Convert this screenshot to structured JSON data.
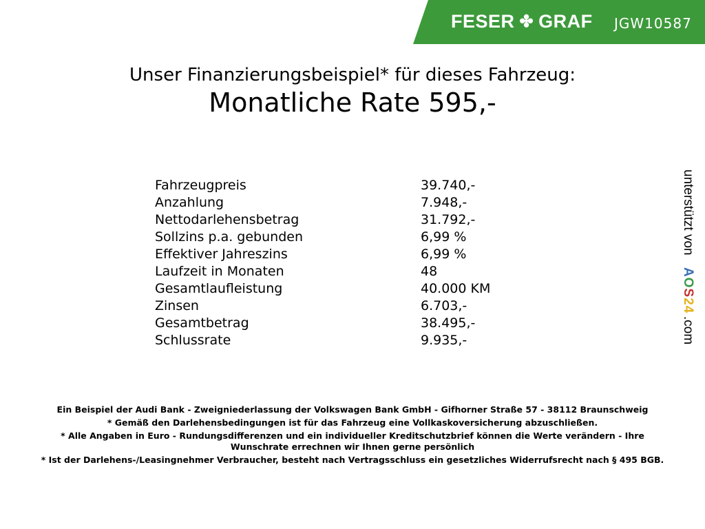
{
  "header": {
    "brand": "FESER",
    "brand2": "GRAF",
    "code": "JGW10587",
    "brand_color": "#3d9a3b",
    "logo_icon": "clover-icon"
  },
  "title": {
    "line1": "Unser Finanzierungsbeispiel* für dieses Fahrzeug:",
    "line2": "Monatliche Rate 595,-"
  },
  "rows": [
    {
      "label": "Fahrzeugpreis",
      "value": "39.740,-"
    },
    {
      "label": "Anzahlung",
      "value": "7.948,-"
    },
    {
      "label": "Nettodarlehensbetrag",
      "value": "31.792,-"
    },
    {
      "label": "Sollzins p.a. gebunden",
      "value": "6,99 %"
    },
    {
      "label": "Effektiver Jahreszins",
      "value": "6,99 %"
    },
    {
      "label": "Laufzeit in Monaten",
      "value": "48"
    },
    {
      "label": "Gesamtlaufleistung",
      "value": "40.000 KM"
    },
    {
      "label": "Zinsen",
      "value": "6.703,-"
    },
    {
      "label": "Gesamtbetrag",
      "value": "38.495,-"
    },
    {
      "label": "Schlussrate",
      "value": "9.935,-"
    }
  ],
  "side": {
    "text": "unterstützt von",
    "logo": "AOS24",
    "suffix": ".com"
  },
  "footer": [
    "Ein Beispiel der Audi Bank - Zweigniederlassung der Volkswagen Bank GmbH - Gifhorner Straße 57 - 38112 Braunschweig",
    "* Gemäß den Darlehensbedingungen ist für das Fahrzeug eine Vollkaskoversicherung abzuschließen.",
    "* Alle Angaben in Euro - Rundungsdifferenzen und ein individueller Kreditschutzbrief können die Werte verändern - Ihre Wunschrate errechnen wir Ihnen gerne persönlich",
    "* Ist der Darlehens-/Leasingnehmer Verbraucher, besteht nach Vertragsschluss ein gesetzliches Widerrufsrecht nach § 495 BGB."
  ]
}
